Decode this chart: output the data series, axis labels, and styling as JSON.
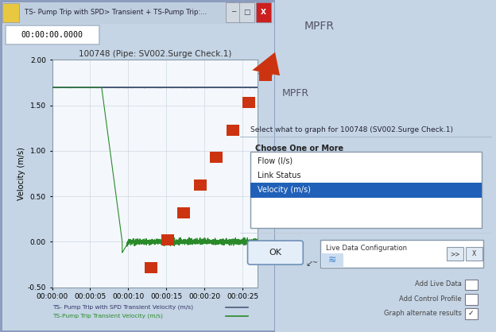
{
  "title": "100748 (Pipe: SV002.Surge Check.1)",
  "ylabel": "Velocity (m/s)",
  "ylim": [
    -0.5,
    2.0
  ],
  "yticks": [
    -0.5,
    0.0,
    0.5,
    1.0,
    1.5,
    2.0
  ],
  "xtick_labels": [
    "00:00:00",
    "00:00:05",
    "00:00:10",
    "00:00:15",
    "00:00:20",
    "00:00:25"
  ],
  "window_title": "TS- Pump Trip with SPD> Transient + TS-Pump Trip:...",
  "time_display": "00:00:00.0000",
  "legend1": "TS- Pump Trip with SPD Transient Velocity (m/s)",
  "legend2": "TS-Pump Trip Transient Velocity (m/s)",
  "line1_color": "#4a5a7a",
  "line2_color": "#2a8a2a",
  "window_bg": "#dde8f2",
  "outer_bg": "#c5d5e5",
  "right_panel_bg": "#dde8f2",
  "mpfr_color": "#555566",
  "plot_bg": "#f4f8fc",
  "dialog_bg": "#f0f4f8",
  "dialog_title": "Select what to graph for 100748 (SV002.Surge Check.1)",
  "dialog_section": "Choose One or More",
  "dialog_items": [
    "Flow (l/s)",
    "Link Status",
    "Velocity (m/s)"
  ],
  "dialog_selected": "Velocity (m/s)",
  "dialog_selected_color": "#2060b8",
  "ok_button_text": "OK",
  "live_data_label": "Live Data Configuration",
  "add_live_data": "Add Live Data",
  "add_control_profile": "Add Control Profile",
  "graph_alternate": "Graph alternate results",
  "arrow_color": "#cc3311",
  "titlebar_color": "#c0cfe0",
  "titlebar_text_color": "#222233"
}
